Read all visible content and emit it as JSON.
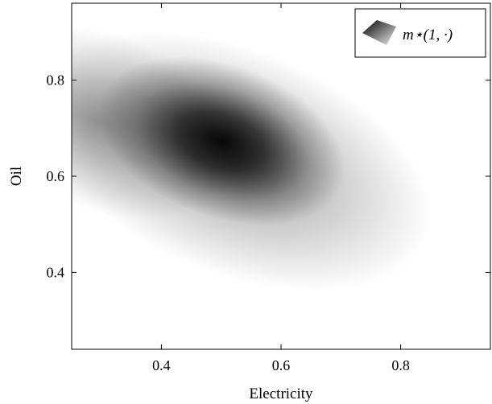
{
  "chart_data": {
    "type": "heatmap",
    "title": "",
    "xlabel": "Electricity",
    "ylabel": "Oil",
    "xlim": [
      0.25,
      0.95
    ],
    "ylim": [
      0.24,
      0.96
    ],
    "xticks": [
      0.4,
      0.6,
      0.8
    ],
    "yticks": [
      0.4,
      0.6,
      0.8
    ],
    "xtick_labels": [
      "0.4",
      "0.6",
      "0.8"
    ],
    "ytick_labels": [
      "0.4",
      "0.6",
      "0.8"
    ],
    "grid": false,
    "legend": {
      "placement": "top-right",
      "entries": [
        "m⋆(1, ·)"
      ]
    },
    "colormap": {
      "low": "#ffffff",
      "high": "#000000"
    },
    "density_peak": {
      "x": 0.51,
      "y": 0.665
    }
  }
}
